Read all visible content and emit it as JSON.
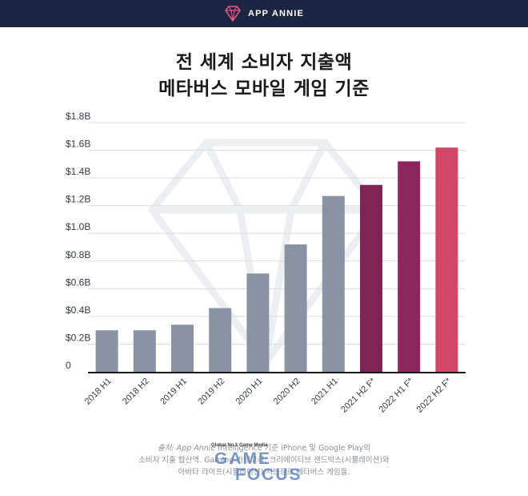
{
  "header": {
    "brand": "APP ANNIE"
  },
  "title": {
    "line1": "전 세계 소비자 지출액",
    "line2": "메타버스 모바일 게임 기준"
  },
  "chart_data": {
    "type": "bar",
    "categories": [
      "2018 H1",
      "2018 H2",
      "2019 H1",
      "2019 H2",
      "2020 H1",
      "2020 H2",
      "2021 H1",
      "2021 H2 F*",
      "2022 H1 F*",
      "2022 H2 F*"
    ],
    "values": [
      0.3,
      0.3,
      0.34,
      0.46,
      0.71,
      0.92,
      1.27,
      1.35,
      1.52,
      1.62
    ],
    "colors": [
      "#8a93a3",
      "#8a93a3",
      "#8a93a3",
      "#8a93a3",
      "#8a93a3",
      "#8a93a3",
      "#8a93a3",
      "#7e2457",
      "#8d2560",
      "#d24767"
    ],
    "ylim": [
      0,
      1.8
    ],
    "yticks": [
      0,
      0.2,
      0.4,
      0.6,
      0.8,
      1.0,
      1.2,
      1.4,
      1.6,
      1.8
    ],
    "ytick_labels": [
      "0",
      "$0.2B",
      "$0.4B",
      "$0.6B",
      "$0.8B",
      "$1.0B",
      "$1.2B",
      "$1.4B",
      "$1.6B",
      "$1.8B"
    ],
    "grid": true,
    "title": "전 세계 소비자 지출액 메타버스 모바일 게임 기준",
    "xlabel": "",
    "ylabel": ""
  },
  "footnote": {
    "line1_source": "출처: App Annie",
    "line1_rest": " Intelligence 기준 iPhone 및 Google Play의",
    "line2": "소비자 지출 합산액. Gaming 카테고리: 크리에이티브 샌드박스(시뮬레이션)와",
    "line3": "아바타 라이프(시뮬레이션) 서브장르 메타버스 게임들."
  },
  "watermark": {
    "tagline": "Global No.1 Game Media",
    "word1": "GAME",
    "word2": "FOCUS"
  }
}
